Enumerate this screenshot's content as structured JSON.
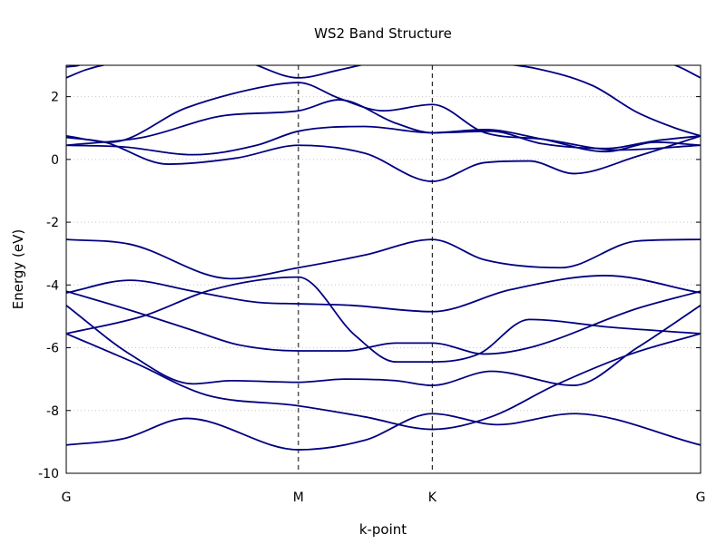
{
  "chart_data": {
    "type": "line",
    "title": "WS2 Band Structure",
    "xlabel": "k-point",
    "ylabel": "Energy (eV)",
    "ylim": [
      -10,
      3
    ],
    "xlim": [
      0,
      1
    ],
    "grid": {
      "y_dotted": true,
      "x": false
    },
    "line_color": "#000080",
    "high_symmetry_points": [
      {
        "label": "G",
        "x": 0.0
      },
      {
        "label": "M",
        "x": 0.366
      },
      {
        "label": "K",
        "x": 0.577
      },
      {
        "label": "G",
        "x": 1.0
      }
    ],
    "ytick_values": [
      -10,
      -8,
      -6,
      -4,
      -2,
      0,
      2
    ],
    "ytick_labels": [
      "-10",
      "-8",
      "-6",
      "-4",
      "-2",
      "0",
      "2"
    ],
    "series": [
      {
        "x": [
          0,
          0.09,
          0.19,
          0.366,
          0.47,
          0.577,
          0.68,
          0.8,
          1.0
        ],
        "y": [
          -9.1,
          -8.9,
          -8.25,
          -9.25,
          -8.95,
          -8.1,
          -8.45,
          -8.1,
          -9.1
        ]
      },
      {
        "x": [
          0,
          0.11,
          0.22,
          0.366,
          0.47,
          0.577,
          0.67,
          0.77,
          0.89,
          1.0
        ],
        "y": [
          -5.55,
          -6.5,
          -7.5,
          -7.85,
          -8.2,
          -8.6,
          -8.2,
          -7.2,
          -6.2,
          -5.55
        ]
      },
      {
        "x": [
          0,
          0.1,
          0.2,
          0.26,
          0.366,
          0.44,
          0.52,
          0.577,
          0.67,
          0.8,
          0.9,
          1.0
        ],
        "y": [
          -4.65,
          -6.2,
          -7.15,
          -7.05,
          -7.1,
          -7.0,
          -7.05,
          -7.2,
          -6.75,
          -7.2,
          -6.0,
          -4.65
        ]
      },
      {
        "x": [
          0,
          0.1,
          0.2,
          0.27,
          0.366,
          0.44,
          0.52,
          0.577,
          0.66,
          0.73,
          0.9,
          1.0
        ],
        "y": [
          -4.2,
          -4.8,
          -5.45,
          -5.9,
          -6.1,
          -6.1,
          -5.85,
          -5.85,
          -6.2,
          -6.0,
          -4.75,
          -4.2
        ]
      },
      {
        "x": [
          0,
          0.12,
          0.23,
          0.366,
          0.455,
          0.52,
          0.577,
          0.65,
          0.73,
          0.86,
          1.0
        ],
        "y": [
          -5.55,
          -5.0,
          -4.15,
          -3.75,
          -5.6,
          -6.45,
          -6.45,
          -6.2,
          -5.1,
          -5.35,
          -5.55
        ]
      },
      {
        "x": [
          0,
          0.1,
          0.2,
          0.3,
          0.366,
          0.45,
          0.577,
          0.7,
          0.85,
          1.0
        ],
        "y": [
          -4.25,
          -3.85,
          -4.2,
          -4.55,
          -4.6,
          -4.65,
          -4.85,
          -4.15,
          -3.7,
          -4.25
        ]
      },
      {
        "x": [
          0,
          0.1,
          0.26,
          0.366,
          0.47,
          0.577,
          0.66,
          0.78,
          0.9,
          1.0
        ],
        "y": [
          -2.55,
          -2.7,
          -3.8,
          -3.45,
          -3.05,
          -2.55,
          -3.2,
          -3.45,
          -2.6,
          -2.55
        ]
      },
      {
        "x": [
          0,
          0.06,
          0.16,
          0.27,
          0.366,
          0.47,
          0.577,
          0.66,
          0.73,
          0.8,
          0.9,
          1.0
        ],
        "y": [
          0.7,
          0.55,
          -0.15,
          0.05,
          0.45,
          0.2,
          -0.7,
          -0.1,
          -0.05,
          -0.45,
          0.1,
          0.75
        ]
      },
      {
        "x": [
          0,
          0.09,
          0.2,
          0.3,
          0.366,
          0.47,
          0.577,
          0.66,
          0.75,
          0.85,
          0.93,
          1.0
        ],
        "y": [
          0.45,
          0.4,
          0.15,
          0.45,
          0.9,
          1.05,
          0.85,
          0.95,
          0.65,
          0.25,
          0.55,
          0.45
        ]
      },
      {
        "x": [
          0,
          0.12,
          0.25,
          0.366,
          0.43,
          0.52,
          0.577,
          0.67,
          0.75,
          0.85,
          0.93,
          1.0
        ],
        "y": [
          0.45,
          0.7,
          1.4,
          1.55,
          1.9,
          1.15,
          0.85,
          0.9,
          0.5,
          0.35,
          0.6,
          0.75
        ]
      },
      {
        "x": [
          0,
          0.07,
          0.19,
          0.32,
          0.366,
          0.43,
          0.5,
          0.577,
          0.66,
          0.75,
          0.87,
          1.0
        ],
        "y": [
          0.75,
          0.55,
          1.65,
          2.35,
          2.45,
          1.95,
          1.55,
          1.75,
          0.85,
          0.65,
          0.3,
          0.45
        ]
      },
      {
        "x": [
          0,
          0.03,
          0.07,
          0.15,
          0.27,
          0.366,
          0.43,
          0.5,
          0.577,
          0.66,
          0.74,
          0.83,
          0.9,
          0.96,
          1.0
        ],
        "y": [
          2.6,
          2.85,
          3.05,
          3.2,
          3.15,
          2.6,
          2.85,
          3.15,
          3.25,
          3.1,
          2.9,
          2.35,
          1.5,
          1.0,
          0.75
        ]
      },
      {
        "x": [
          0,
          0.02,
          0.05,
          0.085,
          0.22,
          0.32,
          0.366,
          0.43,
          0.5,
          0.577,
          0.66,
          0.8,
          0.9,
          0.96,
          1.0
        ],
        "y": [
          2.95,
          3.0,
          3.3,
          3.35,
          3.35,
          3.3,
          3.3,
          3.4,
          3.4,
          3.4,
          3.35,
          3.35,
          3.25,
          3.0,
          2.6
        ]
      }
    ]
  }
}
